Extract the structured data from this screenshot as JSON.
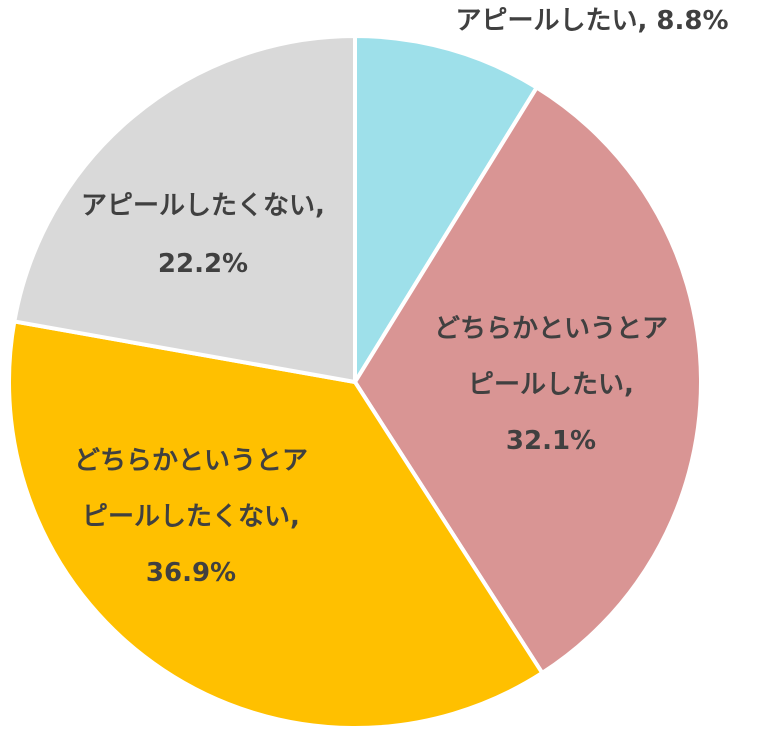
{
  "chart_data": {
    "type": "pie",
    "slices": [
      {
        "lines": [
          "アピールしたい, 8.8%"
        ],
        "value": 8.8,
        "color": "#9ee0ea"
      },
      {
        "lines": [
          "どちらかというとア",
          "ピールしたい,",
          "32.1%"
        ],
        "value": 32.1,
        "color": "#d99594"
      },
      {
        "lines": [
          "どちらかというとア",
          "ピールしたくない,",
          "36.9%"
        ],
        "value": 36.9,
        "color": "#ffc000"
      },
      {
        "lines": [
          "アピールしたくない,",
          "22.2%"
        ],
        "value": 22.2,
        "color": "#d9d9d9"
      }
    ],
    "start_angle_deg": 0,
    "direction": "clockwise"
  }
}
